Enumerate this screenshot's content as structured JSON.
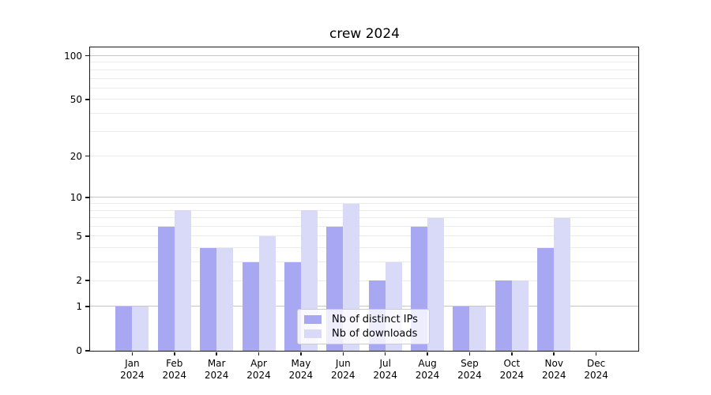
{
  "title": "crew 2024",
  "chart_data": {
    "type": "bar",
    "title": "crew 2024",
    "categories": [
      "Jan",
      "Feb",
      "Mar",
      "Apr",
      "May",
      "Jun",
      "Jul",
      "Aug",
      "Sep",
      "Oct",
      "Nov",
      "Dec"
    ],
    "x_year_suffix": "2024",
    "series": [
      {
        "name": "Nb of distinct IPs",
        "color": "#a7a7f2",
        "values": [
          1,
          6,
          4,
          3,
          3,
          6,
          2,
          6,
          1,
          2,
          4,
          0
        ]
      },
      {
        "name": "Nb of downloads",
        "color": "#d9d9f8",
        "values": [
          1,
          8,
          4,
          5,
          8,
          9,
          3,
          7,
          1,
          2,
          7,
          0
        ]
      }
    ],
    "xlabel": "",
    "ylabel": "",
    "y_scale": "log10(1+y)",
    "y_ticks": [
      0,
      1,
      2,
      5,
      10,
      20,
      50,
      100
    ],
    "y_major_gridlines": [
      1,
      10,
      100
    ],
    "y_minor_gridlines": [
      3,
      4,
      6,
      7,
      8,
      9,
      30,
      40,
      60,
      70,
      80,
      90
    ],
    "ylim": [
      0,
      114
    ],
    "grid": true,
    "legend_position": "lower center"
  },
  "colors": {
    "spine": "#1a1a1a",
    "grid_major": "#c6c6c6",
    "grid_minor": "#ebebeb",
    "legend_background": "rgba(255,255,255,0.8)",
    "legend_border": "#cccccc",
    "text": "#000000"
  }
}
